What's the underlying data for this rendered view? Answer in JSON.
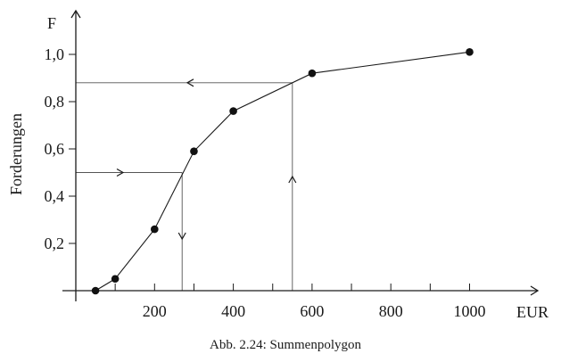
{
  "chart_data": {
    "type": "line",
    "ylabel": "Forderungen",
    "y_axis_symbol": "F",
    "xlabel": "EUR",
    "caption": "Abb. 2.24: Summenpolygon",
    "xlim": [
      -50,
      1100
    ],
    "ylim": [
      0,
      1.1
    ],
    "x_ticks": [
      0,
      100,
      200,
      300,
      400,
      500,
      600,
      700,
      800,
      900,
      1000
    ],
    "x_tick_labels": [
      {
        "value": 200,
        "label": "200"
      },
      {
        "value": 400,
        "label": "400"
      },
      {
        "value": 600,
        "label": "600"
      },
      {
        "value": 800,
        "label": "800"
      },
      {
        "value": 1000,
        "label": "1000"
      }
    ],
    "y_tick_labels": [
      {
        "value": 0.2,
        "label": "0,2"
      },
      {
        "value": 0.4,
        "label": "0,4"
      },
      {
        "value": 0.6,
        "label": "0,6"
      },
      {
        "value": 0.8,
        "label": "0,8"
      },
      {
        "value": 1.0,
        "label": "1,0"
      }
    ],
    "points": [
      {
        "x": 50,
        "y": 0.0
      },
      {
        "x": 100,
        "y": 0.05
      },
      {
        "x": 200,
        "y": 0.26
      },
      {
        "x": 300,
        "y": 0.59
      },
      {
        "x": 400,
        "y": 0.76
      },
      {
        "x": 600,
        "y": 0.92
      },
      {
        "x": 1000,
        "y": 1.01
      }
    ],
    "guides": [
      {
        "from_y": 0.5,
        "at_x": 270
      },
      {
        "from_x": 550,
        "at_y": 0.88
      }
    ],
    "grid": false,
    "legend": "none"
  }
}
